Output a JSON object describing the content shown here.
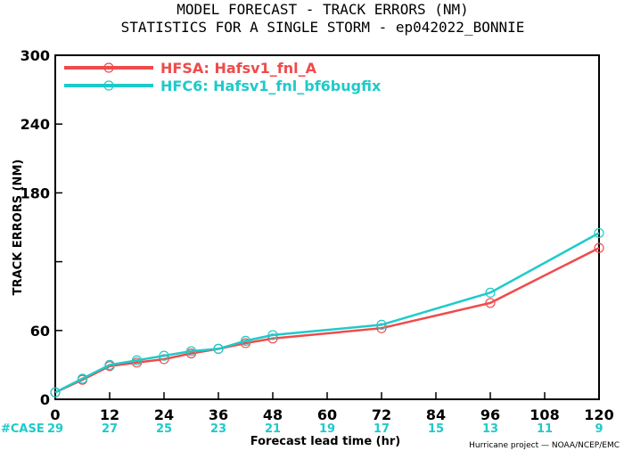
{
  "chart_data": {
    "type": "line",
    "title": "MODEL FORECAST - TRACK ERRORS (NM)",
    "subtitle": "STATISTICS FOR A SINGLE STORM - ep042022_BONNIE",
    "xlabel": "Forecast lead time (hr)",
    "ylabel": "TRACK ERRORS (NM)",
    "xlim": [
      0,
      120
    ],
    "ylim": [
      0,
      300
    ],
    "x_ticks": [
      0,
      12,
      24,
      36,
      48,
      60,
      72,
      84,
      96,
      108,
      120
    ],
    "x_tick_labels": [
      "0",
      "12",
      "24",
      "36",
      "48",
      "60",
      "72",
      "84",
      "96",
      "108",
      "120"
    ],
    "y_ticks": [
      0,
      60,
      120,
      180,
      240,
      300
    ],
    "y_tick_labels": [
      "0",
      "60",
      "\u0012\u0012",
      "180",
      "240",
      "300"
    ],
    "case_label": "#CASE",
    "case_counts": [
      "29",
      "27",
      "25",
      "23",
      "21",
      "19",
      "17",
      "15",
      "13",
      "11",
      "9"
    ],
    "credit": "Hurricane project — NOAA/NCEP/EMC",
    "legend_position": "top-left",
    "grid": false,
    "series": [
      {
        "name": "HFSA: Hafsv1_fnl_A",
        "color": "#ef4b4b",
        "x": [
          0,
          6,
          12,
          18,
          24,
          30,
          36,
          42,
          48,
          72,
          96,
          120
        ],
        "y": [
          6,
          17,
          29,
          32,
          35,
          40,
          44,
          49,
          53,
          62,
          84,
          132
        ]
      },
      {
        "name": "HFC6: Hafsv1_fnl_bf6bugfix",
        "color": "#1fcaca",
        "x": [
          0,
          6,
          12,
          18,
          24,
          30,
          36,
          42,
          48,
          72,
          96,
          120
        ],
        "y": [
          6,
          18,
          30,
          34,
          38,
          42,
          44,
          51,
          56,
          65,
          93,
          145
        ]
      }
    ]
  },
  "colors": {
    "axis": "#000000",
    "case": "#1fcaca"
  }
}
